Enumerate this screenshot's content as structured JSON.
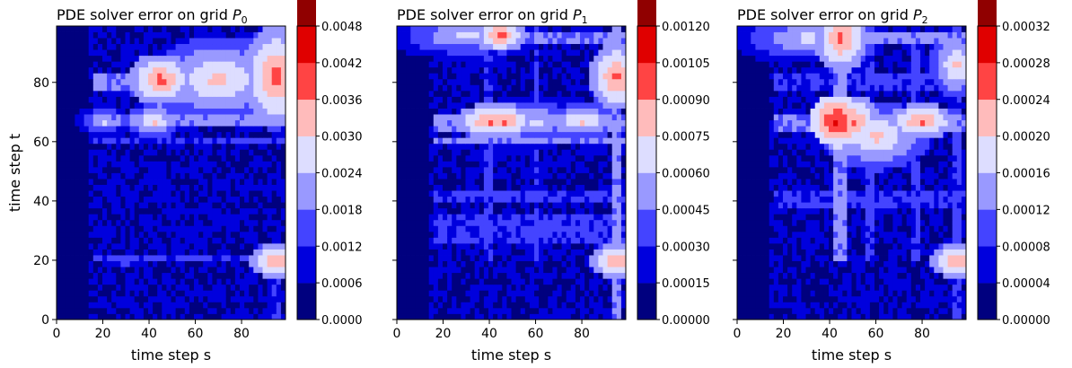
{
  "chart_data": [
    {
      "type": "heatmap",
      "title": "PDE solver error on grid ",
      "title_var": "P",
      "title_sub": "0",
      "xlabel": "time step s",
      "ylabel": "time step t",
      "xlim": [
        0,
        99
      ],
      "ylim": [
        0,
        99
      ],
      "xticks": [
        "0",
        "20",
        "40",
        "60",
        "80"
      ],
      "yticks": [
        "0",
        "20",
        "40",
        "60",
        "80"
      ],
      "colorbar": {
        "levels": [
          "0.0000",
          "0.0006",
          "0.0012",
          "0.0018",
          "0.0024",
          "0.0030",
          "0.0036",
          "0.0042",
          "0.0048"
        ],
        "colors": [
          "#00007f",
          "#0000dd",
          "#4444ff",
          "#9999ff",
          "#ddddff",
          "#ffbbbb",
          "#ff4444",
          "#e00000",
          "#900000"
        ]
      },
      "hotspots": [
        {
          "s": 45,
          "t": 81,
          "level": 6,
          "ws": 5,
          "wt": 3
        },
        {
          "s": 70,
          "t": 81,
          "level": 5,
          "ws": 10,
          "wt": 5
        },
        {
          "s": 95,
          "t": 82,
          "level": 6,
          "ws": 5,
          "wt": 6
        },
        {
          "s": 92,
          "t": 87,
          "level": 5,
          "ws": 4,
          "wt": 4
        },
        {
          "s": 42,
          "t": 67,
          "level": 5,
          "ws": 4,
          "wt": 2
        },
        {
          "s": 20,
          "t": 67,
          "level": 4,
          "ws": 4,
          "wt": 2
        },
        {
          "s": 95,
          "t": 20,
          "level": 6,
          "ws": 4,
          "wt": 2
        },
        {
          "s": 30,
          "t": 20,
          "level": 3,
          "ws": 6,
          "wt": 1
        }
      ],
      "bands": [
        {
          "axis": "t",
          "at": 81,
          "width": 6,
          "from": 15,
          "to": 99,
          "level": 3
        },
        {
          "axis": "t",
          "at": 67,
          "width": 3,
          "from": 15,
          "to": 99,
          "level": 3
        },
        {
          "axis": "t",
          "at": 60,
          "width": 2,
          "from": 15,
          "to": 99,
          "level": 2
        },
        {
          "axis": "t",
          "at": 20,
          "width": 2,
          "from": 15,
          "to": 99,
          "level": 2
        },
        {
          "axis": "s",
          "at": 95,
          "width": 5,
          "from": 0,
          "to": 30,
          "level": 2
        }
      ]
    },
    {
      "type": "heatmap",
      "title": "PDE solver error on grid ",
      "title_var": "P",
      "title_sub": "1",
      "xlabel": "time step s",
      "ylabel": "",
      "xlim": [
        0,
        99
      ],
      "ylim": [
        0,
        99
      ],
      "xticks": [
        "0",
        "20",
        "40",
        "60",
        "80"
      ],
      "yticks": [],
      "colorbar": {
        "levels": [
          "0.00000",
          "0.00015",
          "0.00030",
          "0.00045",
          "0.00060",
          "0.00075",
          "0.00090",
          "0.00105",
          "0.00120"
        ],
        "colors": [
          "#00007f",
          "#0000dd",
          "#4444ff",
          "#9999ff",
          "#ddddff",
          "#ffbbbb",
          "#ff4444",
          "#e00000",
          "#900000"
        ]
      },
      "hotspots": [
        {
          "s": 30,
          "t": 96,
          "level": 4,
          "ws": 12,
          "wt": 3
        },
        {
          "s": 45,
          "t": 96,
          "level": 6,
          "ws": 4,
          "wt": 2
        },
        {
          "s": 95,
          "t": 82,
          "level": 6,
          "ws": 4,
          "wt": 4
        },
        {
          "s": 40,
          "t": 67,
          "level": 6,
          "ws": 5,
          "wt": 2
        },
        {
          "s": 47,
          "t": 67,
          "level": 6,
          "ws": 4,
          "wt": 2
        },
        {
          "s": 80,
          "t": 67,
          "level": 5,
          "ws": 6,
          "wt": 2
        },
        {
          "s": 60,
          "t": 67,
          "level": 4,
          "ws": 8,
          "wt": 3
        },
        {
          "s": 95,
          "t": 20,
          "level": 6,
          "ws": 4,
          "wt": 2
        }
      ],
      "bands": [
        {
          "axis": "t",
          "at": 66,
          "width": 5,
          "from": 15,
          "to": 99,
          "level": 3
        },
        {
          "axis": "t",
          "at": 60,
          "width": 2,
          "from": 15,
          "to": 99,
          "level": 3
        },
        {
          "axis": "t",
          "at": 42,
          "width": 4,
          "from": 15,
          "to": 99,
          "level": 2
        },
        {
          "axis": "t",
          "at": 30,
          "width": 10,
          "from": 15,
          "to": 99,
          "level": 2
        },
        {
          "axis": "s",
          "at": 40,
          "width": 3,
          "from": 20,
          "to": 99,
          "level": 2
        },
        {
          "axis": "s",
          "at": 60,
          "width": 3,
          "from": 20,
          "to": 99,
          "level": 2
        },
        {
          "axis": "s",
          "at": 95,
          "width": 4,
          "from": 0,
          "to": 99,
          "level": 3
        },
        {
          "axis": "t",
          "at": 95,
          "width": 4,
          "from": 15,
          "to": 99,
          "level": 3
        }
      ]
    },
    {
      "type": "heatmap",
      "title": "PDE solver error on grid ",
      "title_var": "P",
      "title_sub": "2",
      "xlabel": "time step s",
      "ylabel": "",
      "xlim": [
        0,
        99
      ],
      "ylim": [
        0,
        99
      ],
      "xticks": [
        "0",
        "20",
        "40",
        "60",
        "80"
      ],
      "yticks": [],
      "colorbar": {
        "levels": [
          "0.00000",
          "0.00004",
          "0.00008",
          "0.00012",
          "0.00016",
          "0.00020",
          "0.00024",
          "0.00028",
          "0.00032"
        ],
        "colors": [
          "#00007f",
          "#0000dd",
          "#4444ff",
          "#9999ff",
          "#ddddff",
          "#ffbbbb",
          "#ff4444",
          "#e00000",
          "#900000"
        ]
      },
      "hotspots": [
        {
          "s": 45,
          "t": 95,
          "level": 6,
          "ws": 4,
          "wt": 4
        },
        {
          "s": 30,
          "t": 95,
          "level": 4,
          "ws": 12,
          "wt": 3
        },
        {
          "s": 95,
          "t": 86,
          "level": 5,
          "ws": 4,
          "wt": 4
        },
        {
          "s": 43,
          "t": 67,
          "level": 7,
          "ws": 4,
          "wt": 3
        },
        {
          "s": 50,
          "t": 67,
          "level": 6,
          "ws": 4,
          "wt": 3
        },
        {
          "s": 80,
          "t": 67,
          "level": 6,
          "ws": 5,
          "wt": 2
        },
        {
          "s": 60,
          "t": 62,
          "level": 5,
          "ws": 8,
          "wt": 4
        },
        {
          "s": 95,
          "t": 20,
          "level": 6,
          "ws": 4,
          "wt": 2
        }
      ],
      "bands": [
        {
          "axis": "t",
          "at": 66,
          "width": 7,
          "from": 15,
          "to": 99,
          "level": 3
        },
        {
          "axis": "t",
          "at": 80,
          "width": 6,
          "from": 15,
          "to": 99,
          "level": 2
        },
        {
          "axis": "t",
          "at": 40,
          "width": 6,
          "from": 15,
          "to": 99,
          "level": 2
        },
        {
          "axis": "s",
          "at": 45,
          "width": 6,
          "from": 20,
          "to": 99,
          "level": 3
        },
        {
          "axis": "s",
          "at": 58,
          "width": 4,
          "from": 20,
          "to": 99,
          "level": 2
        },
        {
          "axis": "s",
          "at": 78,
          "width": 4,
          "from": 20,
          "to": 99,
          "level": 2
        },
        {
          "axis": "s",
          "at": 95,
          "width": 4,
          "from": 0,
          "to": 99,
          "level": 2
        },
        {
          "axis": "t",
          "at": 95,
          "width": 5,
          "from": 15,
          "to": 99,
          "level": 3
        }
      ]
    }
  ]
}
